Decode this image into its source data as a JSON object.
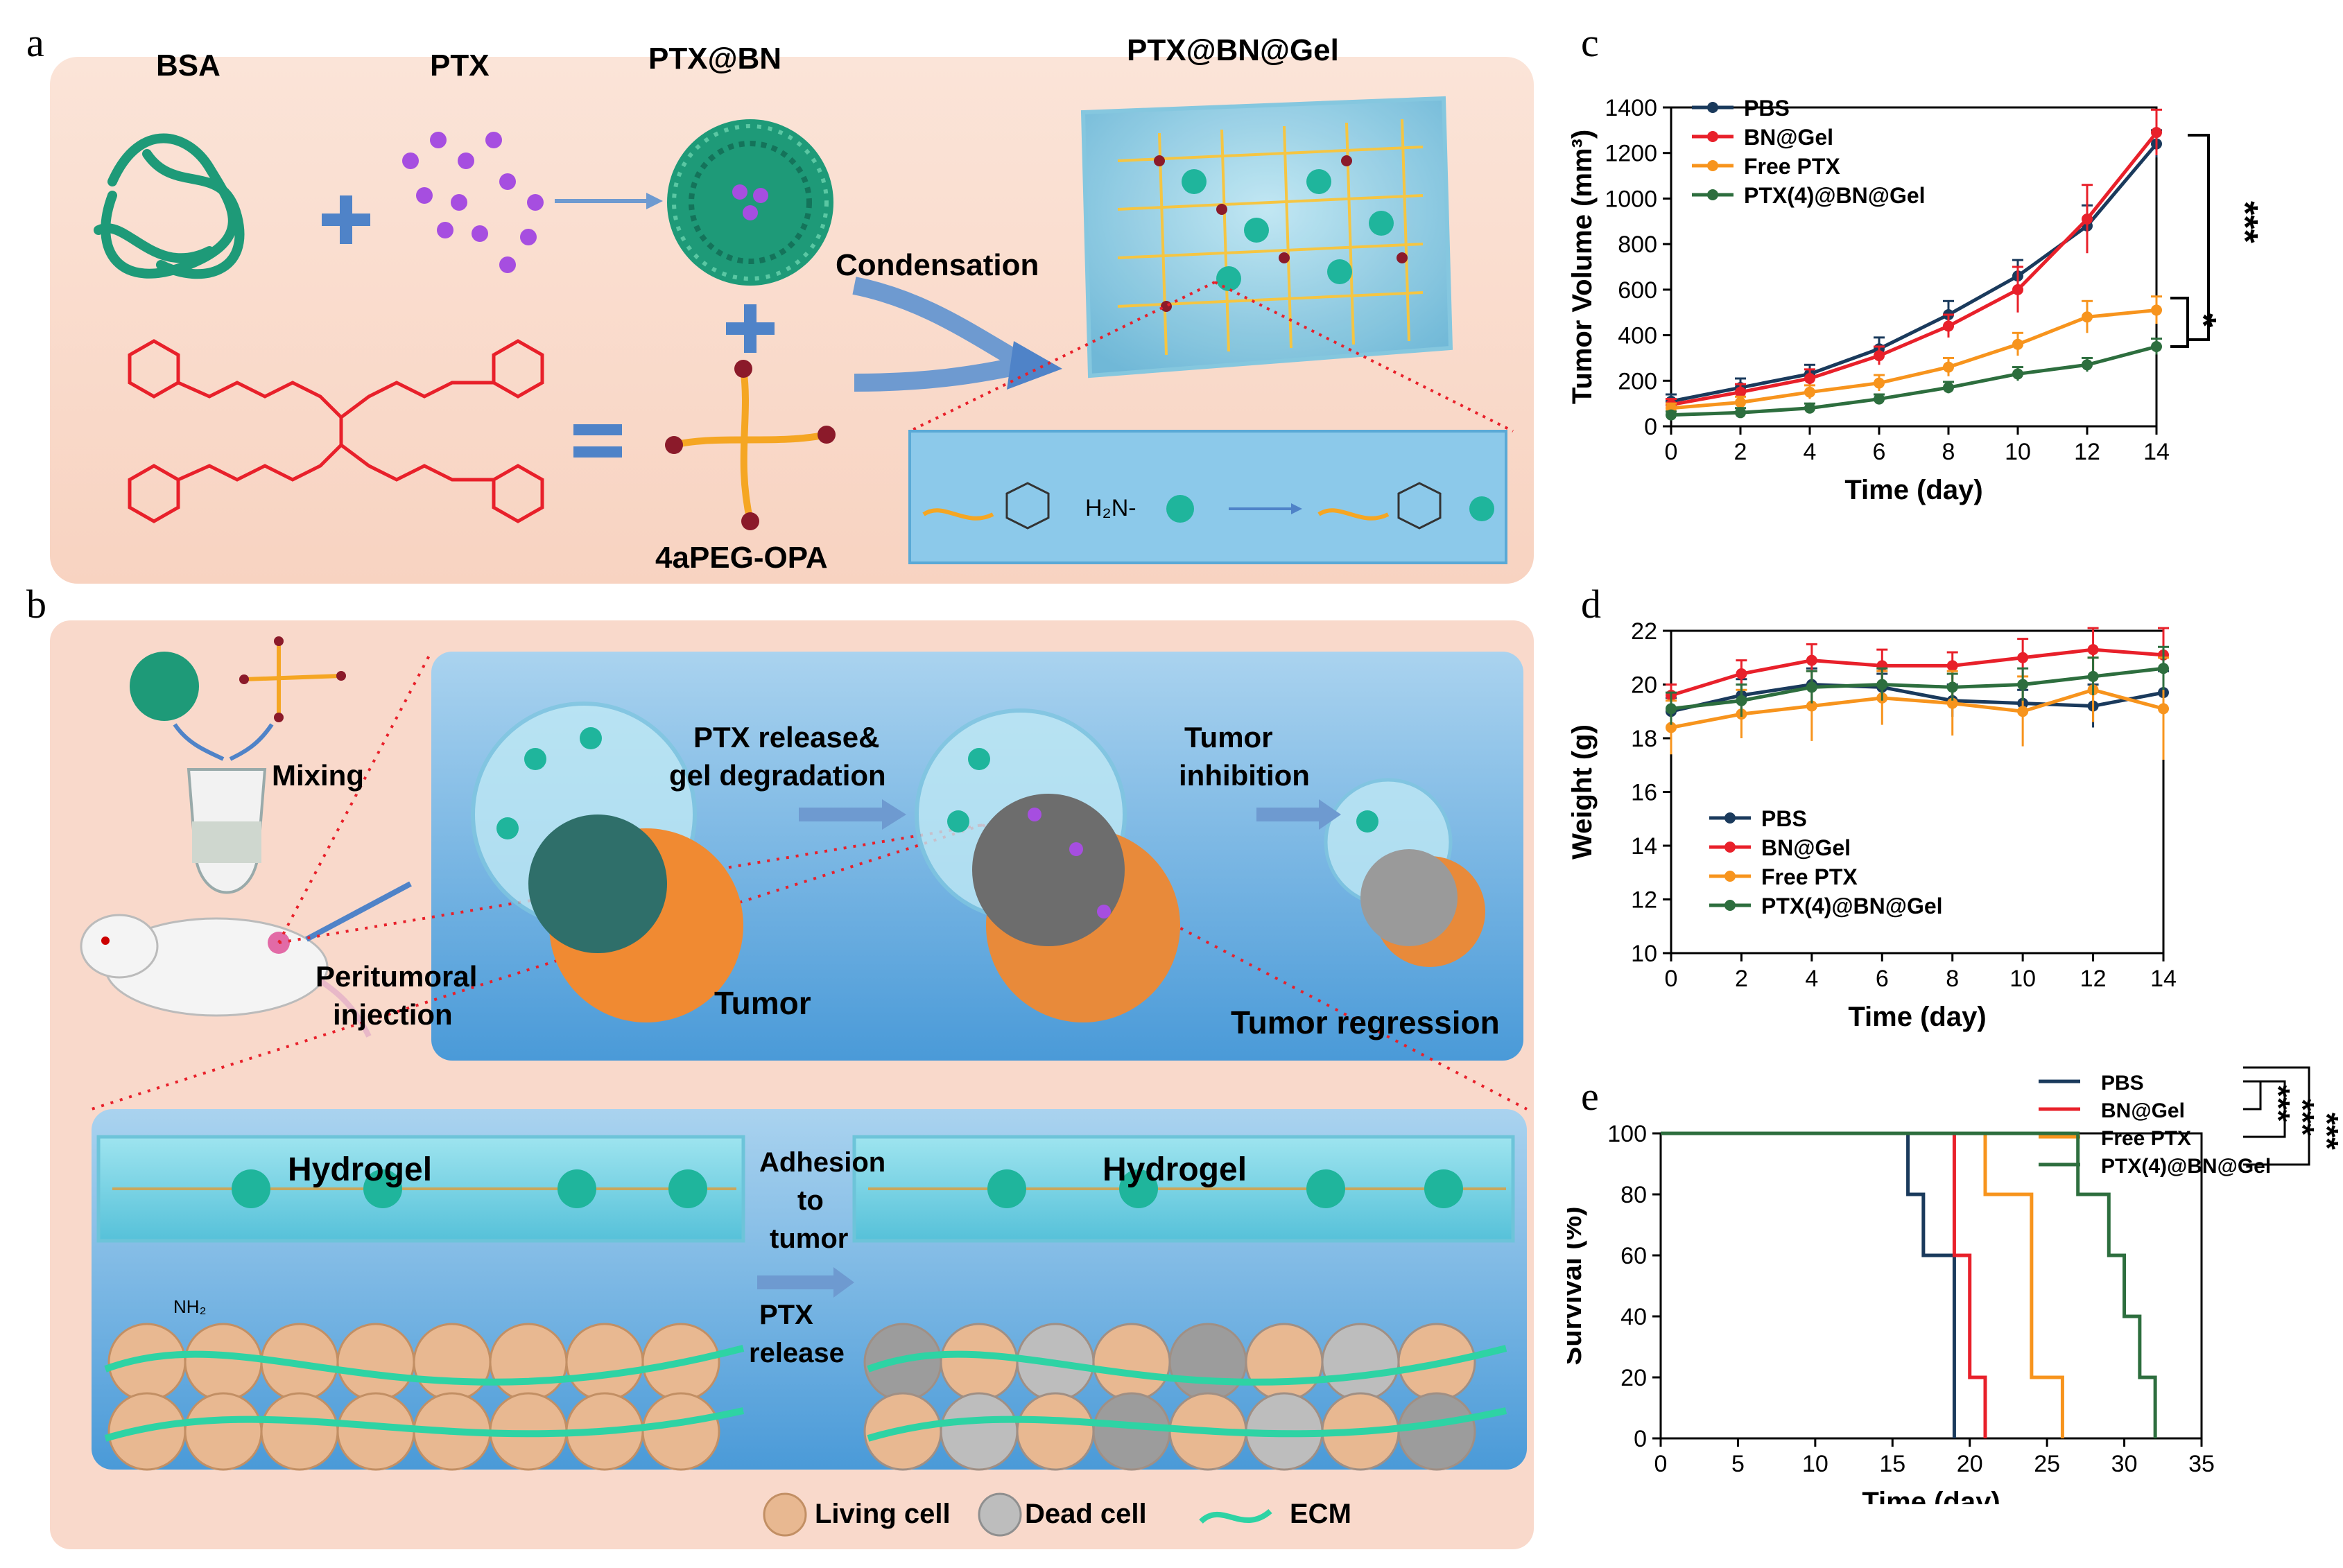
{
  "panel_letters": {
    "a": "a",
    "b": "b",
    "c": "c",
    "d": "d",
    "e": "e"
  },
  "scheme_a": {
    "bsa": "BSA",
    "ptx": "PTX",
    "ptx_bn": "PTX@BN",
    "ptx_bn_gel": "PTX@BN@Gel",
    "condensation": "Condensation",
    "peg": "4aPEG-OPA",
    "amine": "H₂N-"
  },
  "scheme_b": {
    "mixing": "Mixing",
    "peritumoral": "Peritumoral",
    "injection": "injection",
    "ptx_release_line1": "PTX release&",
    "ptx_release_line2": "gel degradation",
    "tumor_inhibition_line1": "Tumor",
    "tumor_inhibition_line2": "inhibition",
    "tumor": "Tumor",
    "tumor_regression": "Tumor regression",
    "hydrogel_left": "Hydrogel",
    "hydrogel_right": "Hydrogel",
    "adhesion_line1": "Adhesion",
    "adhesion_line2": "to",
    "adhesion_line3": "tumor",
    "ptx_line1": "PTX",
    "ptx_line2": "release",
    "nh2": "NH₂",
    "legend_living": "Living cell",
    "legend_dead": "Dead cell",
    "legend_ecm": "ECM"
  },
  "colors": {
    "pbs": "#1a3a5c",
    "bn_gel": "#e8202a",
    "free_ptx": "#f7941d",
    "ptx_bn_gel": "#2d6e3e"
  },
  "chart_data": [
    {
      "id": "c",
      "type": "line",
      "xlabel": "Time (day)",
      "ylabel": "Tumor Volume (mm³)",
      "xlim": [
        0,
        14
      ],
      "ylim": [
        0,
        1400
      ],
      "xticks": [
        0,
        2,
        4,
        6,
        8,
        10,
        12,
        14
      ],
      "yticks": [
        0,
        200,
        400,
        600,
        800,
        1000,
        1200,
        1400
      ],
      "x": [
        0,
        2,
        4,
        6,
        8,
        10,
        12,
        14
      ],
      "series": [
        {
          "name": "PBS",
          "values": [
            110,
            170,
            230,
            340,
            490,
            660,
            880,
            1240
          ],
          "err": [
            30,
            40,
            40,
            50,
            60,
            70,
            90,
            60
          ]
        },
        {
          "name": "BN@Gel",
          "values": [
            95,
            150,
            210,
            310,
            440,
            600,
            910,
            1290
          ],
          "err": [
            25,
            35,
            40,
            40,
            50,
            100,
            150,
            100
          ]
        },
        {
          "name": "Free PTX",
          "values": [
            80,
            105,
            150,
            190,
            260,
            360,
            480,
            510
          ],
          "err": [
            20,
            25,
            30,
            35,
            40,
            50,
            70,
            60
          ]
        },
        {
          "name": "PTX(4)@BN@Gel",
          "values": [
            50,
            60,
            80,
            120,
            170,
            230,
            270,
            350
          ],
          "err": [
            15,
            20,
            20,
            20,
            25,
            30,
            30,
            35
          ]
        }
      ],
      "significance": [
        "***",
        "*"
      ]
    },
    {
      "id": "d",
      "type": "line",
      "xlabel": "Time (day)",
      "ylabel": "Weight (g)",
      "xlim": [
        0,
        14
      ],
      "ylim": [
        10,
        22
      ],
      "xticks": [
        0,
        2,
        4,
        6,
        8,
        10,
        12,
        14
      ],
      "yticks": [
        10,
        12,
        14,
        16,
        18,
        20,
        22
      ],
      "x": [
        0,
        2,
        4,
        6,
        8,
        10,
        12,
        14
      ],
      "series": [
        {
          "name": "PBS",
          "values": [
            19.0,
            19.6,
            20.0,
            19.9,
            19.4,
            19.3,
            19.2,
            19.7
          ],
          "err": [
            0.5,
            0.6,
            0.6,
            0.5,
            0.6,
            0.5,
            0.8,
            0.8
          ]
        },
        {
          "name": "BN@Gel",
          "values": [
            19.6,
            20.4,
            20.9,
            20.7,
            20.7,
            21.0,
            21.3,
            21.1
          ],
          "err": [
            0.4,
            0.5,
            0.6,
            0.6,
            0.5,
            0.7,
            0.8,
            1.0
          ]
        },
        {
          "name": "Free PTX",
          "values": [
            18.4,
            18.9,
            19.2,
            19.5,
            19.3,
            19.0,
            19.8,
            19.1
          ],
          "err": [
            1.0,
            0.9,
            1.3,
            1.0,
            1.2,
            1.3,
            1.2,
            1.9
          ]
        },
        {
          "name": "PTX(4)@BN@Gel",
          "values": [
            19.1,
            19.4,
            19.9,
            20.0,
            19.9,
            20.0,
            20.3,
            20.6
          ],
          "err": [
            0.6,
            0.6,
            0.6,
            0.6,
            0.5,
            0.6,
            0.7,
            0.8
          ]
        }
      ]
    },
    {
      "id": "e",
      "type": "step",
      "xlabel": "Time (day)",
      "ylabel": "Survival (%)",
      "xlim": [
        0,
        35
      ],
      "ylim": [
        0,
        100
      ],
      "xticks": [
        0,
        5,
        10,
        15,
        20,
        25,
        30,
        35
      ],
      "yticks": [
        0,
        20,
        40,
        60,
        80,
        100
      ],
      "series": [
        {
          "name": "PBS",
          "steps": [
            [
              0,
              100
            ],
            [
              16,
              80
            ],
            [
              17,
              60
            ],
            [
              19,
              0
            ]
          ]
        },
        {
          "name": "BN@Gel",
          "steps": [
            [
              0,
              100
            ],
            [
              19,
              60
            ],
            [
              20,
              20
            ],
            [
              21,
              0
            ]
          ]
        },
        {
          "name": "Free PTX",
          "steps": [
            [
              0,
              100
            ],
            [
              21,
              80
            ],
            [
              24,
              20
            ],
            [
              26,
              0
            ]
          ]
        },
        {
          "name": "PTX(4)@BN@Gel",
          "steps": [
            [
              0,
              100
            ],
            [
              27,
              80
            ],
            [
              29,
              60
            ],
            [
              30,
              40
            ],
            [
              31,
              20
            ],
            [
              32,
              0
            ]
          ]
        }
      ],
      "significance": [
        "***",
        "***",
        "***"
      ]
    }
  ]
}
